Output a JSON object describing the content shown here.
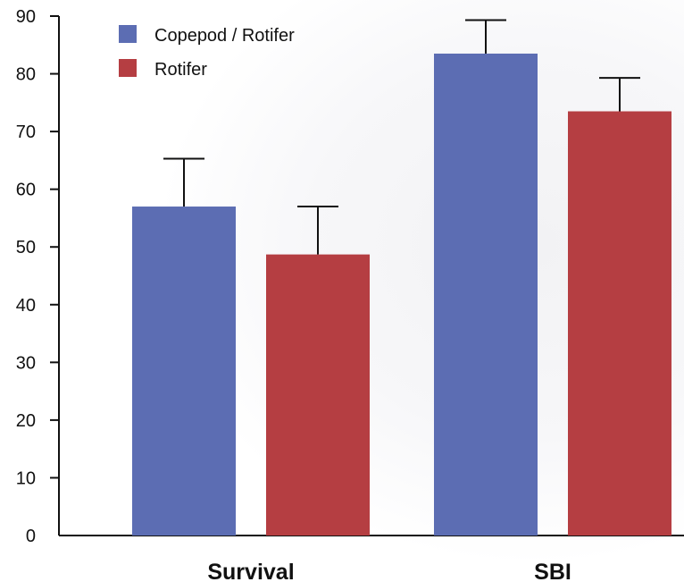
{
  "chart_data": {
    "type": "bar",
    "title": "",
    "xlabel": "",
    "ylabel": "",
    "categories": [
      "Survival",
      "SBI"
    ],
    "ylim": [
      0,
      90
    ],
    "yticks": [
      0,
      10,
      20,
      30,
      40,
      50,
      60,
      70,
      80,
      90
    ],
    "grid": false,
    "legend_position": "top-left",
    "error_bars": "upper",
    "series": [
      {
        "name": "Copepod / Rotifer",
        "color": "#5c6db3",
        "values": [
          57,
          83.5
        ],
        "errors": [
          8.3,
          5.8
        ]
      },
      {
        "name": "Rotifer",
        "color": "#b53e42",
        "values": [
          48.7,
          73.5
        ],
        "errors": [
          8.3,
          5.8
        ]
      }
    ]
  }
}
